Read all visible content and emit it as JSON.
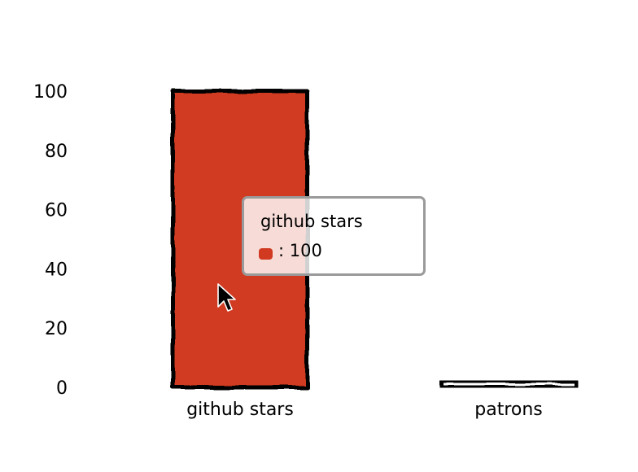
{
  "chart_data": {
    "type": "bar",
    "categories": [
      "github stars",
      "patrons"
    ],
    "values": [
      100,
      0
    ],
    "ylim": [
      0,
      100
    ],
    "yticks": [
      0,
      20,
      40,
      60,
      80,
      100
    ],
    "grid": false,
    "bar_color": "#d13a20",
    "title": "",
    "xlabel": "",
    "ylabel": ""
  },
  "tooltip": {
    "title": "github stars",
    "value_text": ": 100",
    "swatch_color": "#d13a20"
  },
  "cursor": {
    "icon": "mouse-pointer-icon"
  }
}
